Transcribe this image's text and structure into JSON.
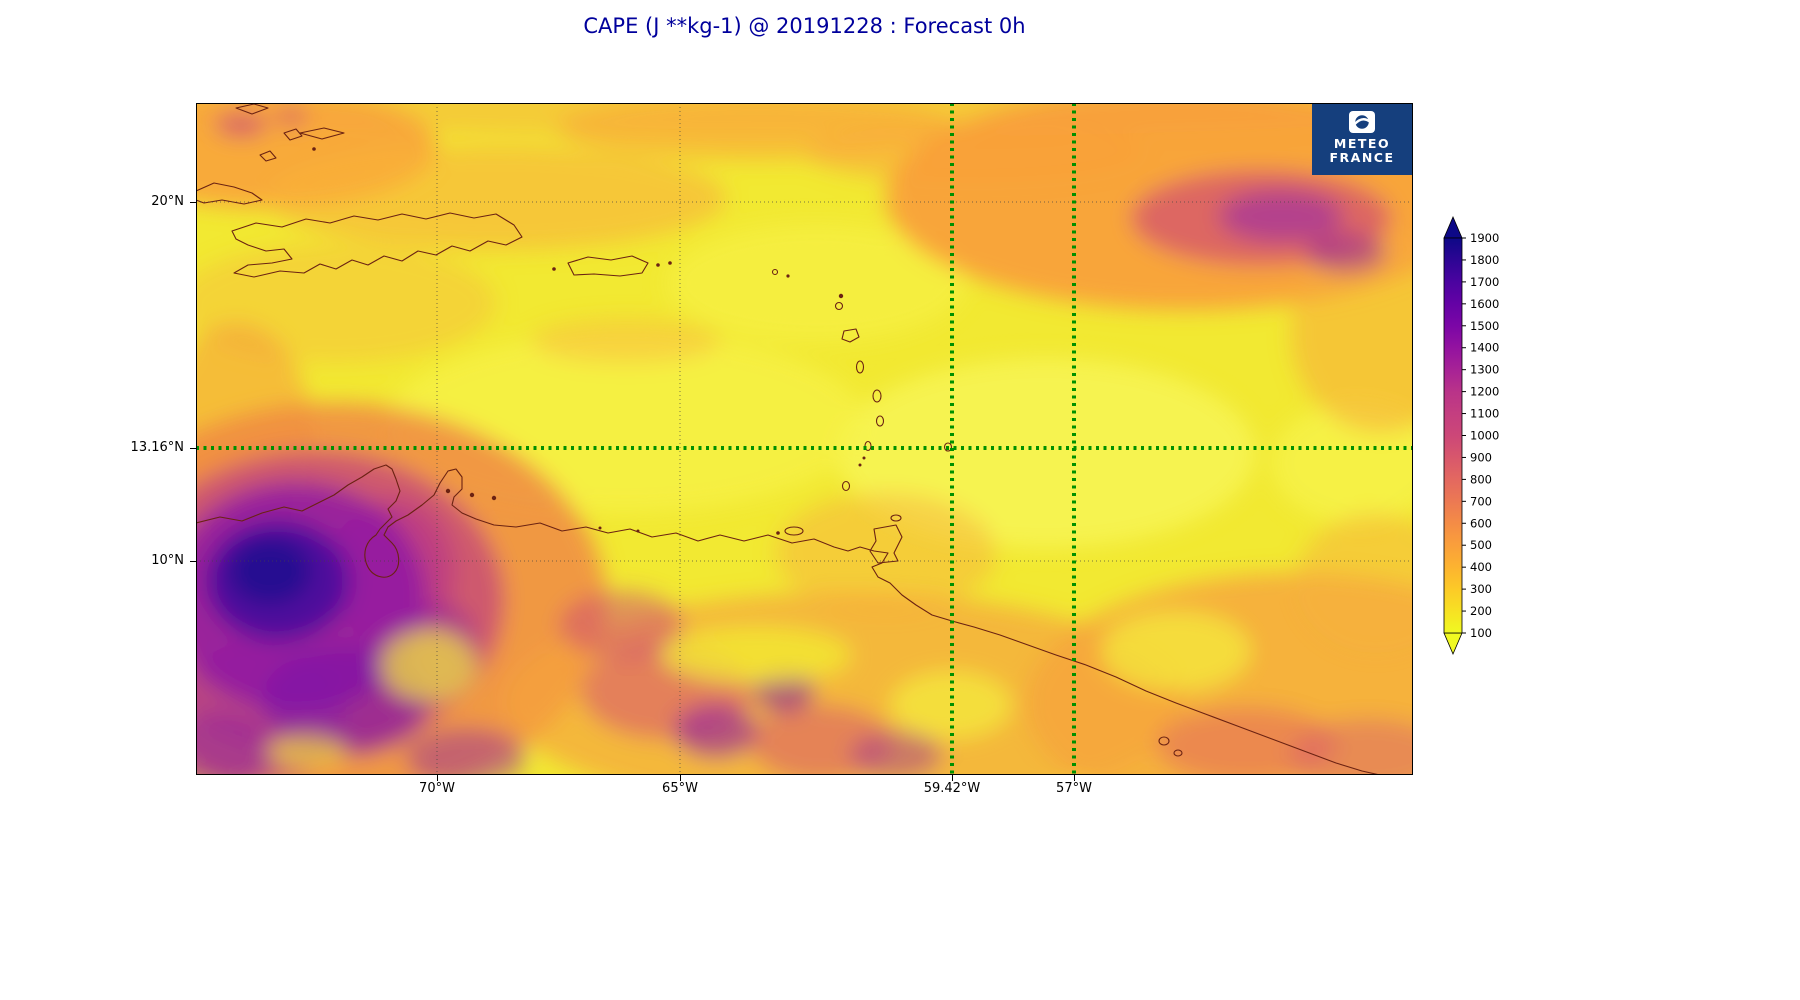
{
  "title": "CAPE (J **kg-1) @ 20191228 : Forecast 0h",
  "logo": {
    "name": "Meteo-France",
    "line1": "METEO",
    "line2": "FRANCE"
  },
  "axes": {
    "y_ticks": [
      {
        "label": "20°N",
        "lat": 20
      },
      {
        "label": "13.16°N",
        "lat": 13.16
      },
      {
        "label": "10°N",
        "lat": 10
      }
    ],
    "x_ticks": [
      {
        "label": "70°W",
        "lon": -70
      },
      {
        "label": "65°W",
        "lon": -65
      },
      {
        "label": "59.42°W",
        "lon": -59.42
      },
      {
        "label": "57°W",
        "lon": -57
      }
    ]
  },
  "colorbar": {
    "levels": [
      100,
      200,
      300,
      400,
      500,
      600,
      700,
      800,
      900,
      1000,
      1100,
      1200,
      1300,
      1400,
      1500,
      1600,
      1700,
      1800,
      1900
    ],
    "colors": [
      "#f0f921",
      "#f7e123",
      "#fcca27",
      "#fcb330",
      "#fa9f3b",
      "#f48c46",
      "#ec7953",
      "#e36860",
      "#d8576c",
      "#cc4778",
      "#c43e80",
      "#b93389",
      "#a72296",
      "#9312a0",
      "#7b06a6",
      "#6402a5",
      "#4b03a0",
      "#2d0594",
      "#0d0887"
    ],
    "extend": "both"
  },
  "colors": {
    "title_text": "#00009c",
    "grid_green": "#009000",
    "coastline": "#6b2212",
    "logo_bg": "#153f7d",
    "map_base": "#f2e932"
  },
  "chart_data": {
    "type": "heatmap",
    "title": "CAPE (J **kg-1) @ 20191228 : Forecast 0h",
    "variable": "CAPE",
    "units": "J **kg-1",
    "analysis_date": "20191228",
    "forecast_lead": "0h",
    "region": "Caribbean Sea / Antilles / northern South America",
    "lon_range": [
      -75,
      -50
    ],
    "lat_range": [
      4,
      22.8
    ],
    "x_tick_lons": [
      -70,
      -65,
      -59.42,
      -57
    ],
    "y_tick_lats": [
      20,
      13.16,
      10
    ],
    "reference_lines": {
      "lat": [
        13.16
      ],
      "lon": [
        -59.42,
        -57
      ],
      "style": "thick dotted green"
    },
    "graticule_lines": {
      "lat": [
        20,
        10
      ],
      "lon": [
        -70,
        -65
      ],
      "style": "thin dotted black"
    },
    "colorbar": {
      "min": 100,
      "max": 1900,
      "step": 100,
      "colormap": "yellow (low) -> orange -> magenta -> purple -> dark navy (high), plasma reversed, extend arrows both ends"
    },
    "approx_field": [
      {
        "area": "NW Venezuela / Colombia border near 73W 9-10N",
        "cape_J_per_kg": "1200-1900 (maximum, dark navy core)"
      },
      {
        "area": "Lake Maracaibo surroundings",
        "cape_J_per_kg": "800-1400"
      },
      {
        "area": "Venezuela interior south of the coast (66-61W, 6-9N)",
        "cape_J_per_kg": "400-1200 with patchy purple spots to ~1500"
      },
      {
        "area": "Guianas coast and SE corner of map",
        "cape_J_per_kg": "300-800"
      },
      {
        "area": "tropical Atlantic NE quadrant (~58-52W, 18-21N)",
        "cape_J_per_kg": "400-1100 (magenta core near 1000)"
      },
      {
        "area": "northern band 20-22.5N across top of map",
        "cape_J_per_kg": "200-500"
      },
      {
        "area": "central Caribbean Sea and around the Lesser Antilles arc",
        "cape_J_per_kg": "100-300"
      }
    ]
  }
}
